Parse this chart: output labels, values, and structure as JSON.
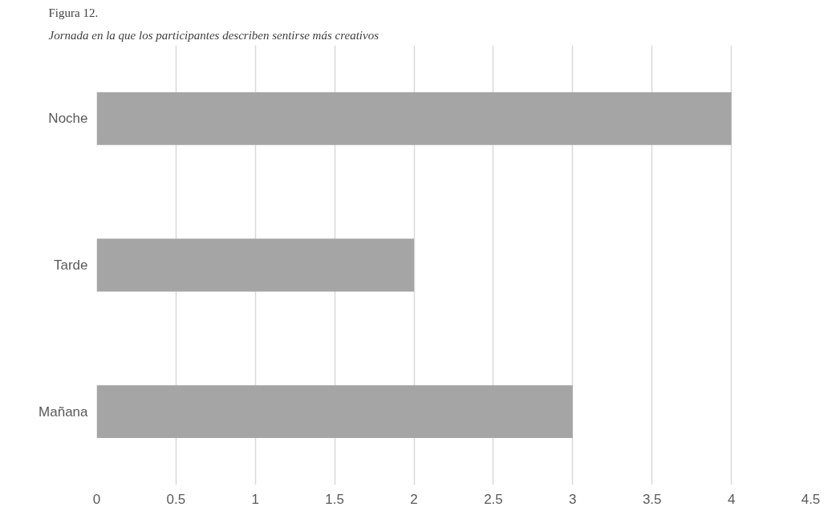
{
  "chart_data": {
    "type": "bar",
    "orientation": "horizontal",
    "title": "Figura 12.",
    "subtitle": "Jornada en la que los participantes describen sentirse más creativos",
    "categories": [
      "Noche",
      "Tarde",
      "Mañana"
    ],
    "values": [
      4,
      2,
      3
    ],
    "color": "#a5a5a5",
    "xlim": [
      0,
      4.5
    ],
    "xticks": [
      0,
      0.5,
      1,
      1.5,
      2,
      2.5,
      3,
      3.5,
      4,
      4.5
    ],
    "grid": "x"
  }
}
